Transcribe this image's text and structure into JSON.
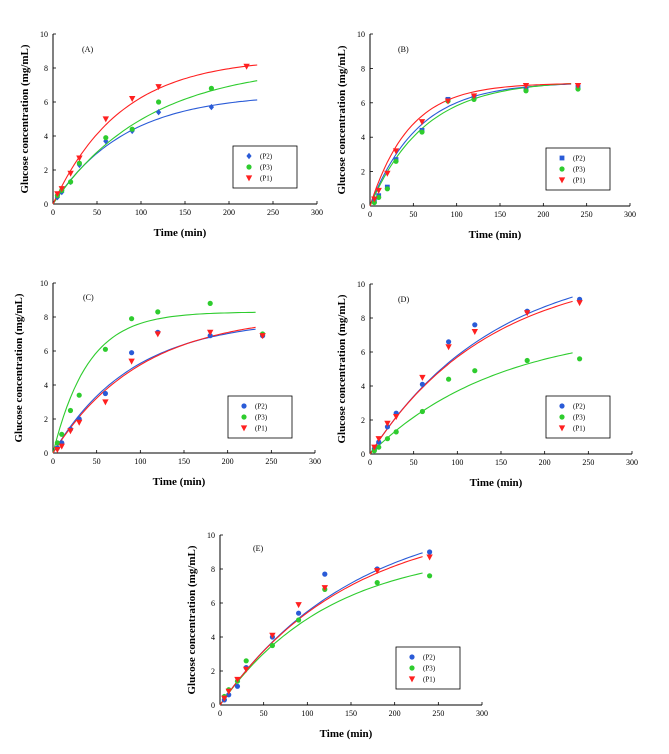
{
  "figure": {
    "series_colors": {
      "P2": "#2a5bd7",
      "P3": "#2ecc2e",
      "P1": "#ff2020"
    }
  },
  "chart_data": [
    {
      "type": "scatter",
      "panel_label": "(A)",
      "title": "",
      "xlabel": "Time (min)",
      "ylabel": "Glucose concentration (mg/mL)",
      "xlim": [
        0,
        300
      ],
      "ylim": [
        0,
        10
      ],
      "x_ticks": [
        "0",
        "50",
        "100",
        "150",
        "200",
        "250",
        "300"
      ],
      "y_ticks": [
        "0",
        "2",
        "4",
        "6",
        "8",
        "10"
      ],
      "legend_position": "bottom-right",
      "series": [
        {
          "name": "(P2)",
          "color": "#2a5bd7",
          "marker": "diamond",
          "x": [
            5,
            10,
            20,
            30,
            60,
            90,
            120,
            180
          ],
          "y": [
            0.4,
            0.7,
            1.3,
            2.3,
            3.7,
            4.3,
            5.4,
            5.7
          ],
          "fit": {
            "a": 6.5,
            "k": 0.0123
          }
        },
        {
          "name": "(P3)",
          "color": "#2ecc2e",
          "marker": "circle",
          "x": [
            5,
            10,
            20,
            30,
            60,
            90,
            120,
            180
          ],
          "y": [
            0.5,
            0.8,
            1.3,
            2.4,
            3.9,
            4.4,
            6.0,
            6.8
          ],
          "fit": {
            "a": 8.2,
            "k": 0.0093
          }
        },
        {
          "name": "(P1)",
          "color": "#ff2020",
          "marker": "triangle",
          "x": [
            5,
            10,
            20,
            30,
            60,
            90,
            120,
            220
          ],
          "y": [
            0.6,
            0.9,
            1.8,
            2.7,
            5.0,
            6.2,
            6.9,
            8.1
          ],
          "fit": {
            "a": 8.6,
            "k": 0.013
          }
        }
      ]
    },
    {
      "type": "scatter",
      "panel_label": "(B)",
      "title": "",
      "xlabel": "Time (min)",
      "ylabel": "Glucose concentration (mg/mL)",
      "xlim": [
        0,
        300
      ],
      "ylim": [
        0,
        10
      ],
      "x_ticks": [
        "0",
        "50",
        "100",
        "150",
        "200",
        "250",
        "300"
      ],
      "y_ticks": [
        "0",
        "2",
        "4",
        "6",
        "8",
        "10"
      ],
      "legend_position": "bottom-right",
      "series": [
        {
          "name": "(P2)",
          "color": "#2a5bd7",
          "marker": "square",
          "x": [
            5,
            10,
            20,
            30,
            60,
            90,
            120,
            180,
            240
          ],
          "y": [
            0.3,
            0.6,
            1.1,
            2.7,
            4.4,
            6.2,
            6.3,
            6.8,
            6.9
          ],
          "fit": {
            "a": 7.2,
            "k": 0.018
          }
        },
        {
          "name": "(P3)",
          "color": "#2ecc2e",
          "marker": "circle",
          "x": [
            5,
            10,
            20,
            30,
            60,
            90,
            120,
            180,
            240
          ],
          "y": [
            0.2,
            0.5,
            1.0,
            2.6,
            4.3,
            6.1,
            6.2,
            6.7,
            6.8
          ],
          "fit": {
            "a": 7.3,
            "k": 0.016
          }
        },
        {
          "name": "(P1)",
          "color": "#ff2020",
          "marker": "triangle",
          "x": [
            5,
            10,
            20,
            30,
            60,
            90,
            120,
            180,
            240
          ],
          "y": [
            0.4,
            0.9,
            1.9,
            3.2,
            4.9,
            6.1,
            6.4,
            7.0,
            7.0
          ],
          "fit": {
            "a": 7.15,
            "k": 0.022
          }
        }
      ]
    },
    {
      "type": "scatter",
      "panel_label": "(C)",
      "title": "",
      "xlabel": "Time (min)",
      "ylabel": "Glucose concentration (mg/mL)",
      "xlim": [
        0,
        300
      ],
      "ylim": [
        0,
        10
      ],
      "x_ticks": [
        "0",
        "50",
        "100",
        "150",
        "200",
        "250",
        "300"
      ],
      "y_ticks": [
        "0",
        "2",
        "4",
        "6",
        "8",
        "10"
      ],
      "legend_position": "bottom-right",
      "series": [
        {
          "name": "(P2)",
          "color": "#2a5bd7",
          "marker": "circle",
          "x": [
            5,
            10,
            20,
            30,
            60,
            90,
            120,
            180,
            240
          ],
          "y": [
            0.3,
            0.6,
            1.4,
            2.0,
            3.5,
            5.9,
            7.1,
            6.9,
            6.9
          ],
          "fit": {
            "a": 7.9,
            "k": 0.011
          }
        },
        {
          "name": "(P3)",
          "color": "#2ecc2e",
          "marker": "circle",
          "x": [
            5,
            10,
            20,
            30,
            60,
            90,
            120,
            180,
            240
          ],
          "y": [
            0.6,
            1.1,
            2.5,
            3.4,
            6.1,
            7.9,
            8.3,
            8.8,
            7.0
          ],
          "fit": {
            "a": 8.3,
            "k": 0.025
          }
        },
        {
          "name": "(P1)",
          "color": "#ff2020",
          "marker": "triangle",
          "x": [
            5,
            10,
            20,
            30,
            60,
            90,
            120,
            180,
            240
          ],
          "y": [
            0.2,
            0.4,
            1.3,
            1.8,
            3.0,
            5.4,
            7.0,
            7.1,
            6.9
          ],
          "fit": {
            "a": 8.2,
            "k": 0.01
          }
        }
      ]
    },
    {
      "type": "scatter",
      "panel_label": "(D)",
      "title": "",
      "xlabel": "Time (min)",
      "ylabel": "Glucose concentration (mg/mL)",
      "xlim": [
        0,
        300
      ],
      "ylim": [
        0,
        10
      ],
      "x_ticks": [
        "0",
        "50",
        "100",
        "150",
        "200",
        "250",
        "300"
      ],
      "y_ticks": [
        "0",
        "2",
        "4",
        "6",
        "8",
        "10"
      ],
      "legend_position": "bottom-right",
      "series": [
        {
          "name": "(P2)",
          "color": "#2a5bd7",
          "marker": "circle",
          "x": [
            5,
            10,
            20,
            30,
            60,
            90,
            120,
            180,
            240
          ],
          "y": [
            0.3,
            0.7,
            1.6,
            2.4,
            4.1,
            6.6,
            7.6,
            8.4,
            9.1
          ],
          "fit": {
            "a": 11.5,
            "k": 0.007
          }
        },
        {
          "name": "(P3)",
          "color": "#2ecc2e",
          "marker": "circle",
          "x": [
            5,
            10,
            20,
            30,
            60,
            90,
            120,
            180,
            240
          ],
          "y": [
            0.2,
            0.4,
            0.9,
            1.3,
            2.5,
            4.4,
            4.9,
            5.5,
            5.6
          ],
          "fit": {
            "a": 7.5,
            "k": 0.0068
          }
        },
        {
          "name": "(P1)",
          "color": "#ff2020",
          "marker": "triangle",
          "x": [
            5,
            10,
            20,
            30,
            60,
            90,
            120,
            180,
            240
          ],
          "y": [
            0.4,
            0.9,
            1.8,
            2.2,
            4.5,
            6.3,
            7.2,
            8.3,
            8.9
          ],
          "fit": {
            "a": 11.0,
            "k": 0.0073
          }
        }
      ]
    },
    {
      "type": "scatter",
      "panel_label": "(E)",
      "title": "",
      "xlabel": "Time (min)",
      "ylabel": "Glucose concentration (mg/mL)",
      "xlim": [
        0,
        300
      ],
      "ylim": [
        0,
        10
      ],
      "x_ticks": [
        "0",
        "50",
        "100",
        "150",
        "200",
        "250",
        "300"
      ],
      "y_ticks": [
        "0",
        "2",
        "4",
        "6",
        "8",
        "10"
      ],
      "legend_position": "bottom-right",
      "series": [
        {
          "name": "(P2)",
          "color": "#2a5bd7",
          "marker": "circle",
          "x": [
            5,
            10,
            20,
            30,
            60,
            90,
            120,
            180,
            240
          ],
          "y": [
            0.3,
            0.6,
            1.1,
            2.2,
            4.0,
            5.4,
            7.7,
            8.0,
            9.0
          ],
          "fit": {
            "a": 11.5,
            "k": 0.0065
          }
        },
        {
          "name": "(P3)",
          "color": "#2ecc2e",
          "marker": "circle",
          "x": [
            5,
            10,
            20,
            30,
            60,
            90,
            120,
            180,
            240
          ],
          "y": [
            0.5,
            0.9,
            1.4,
            2.6,
            3.5,
            5.0,
            6.8,
            7.2,
            7.6
          ],
          "fit": {
            "a": 9.2,
            "k": 0.008
          }
        },
        {
          "name": "(P1)",
          "color": "#ff2020",
          "marker": "triangle",
          "x": [
            5,
            10,
            20,
            30,
            60,
            90,
            120,
            180,
            240
          ],
          "y": [
            0.4,
            0.8,
            1.5,
            2.1,
            4.1,
            5.9,
            6.9,
            7.9,
            8.7
          ],
          "fit": {
            "a": 11.0,
            "k": 0.0068
          }
        }
      ]
    }
  ]
}
